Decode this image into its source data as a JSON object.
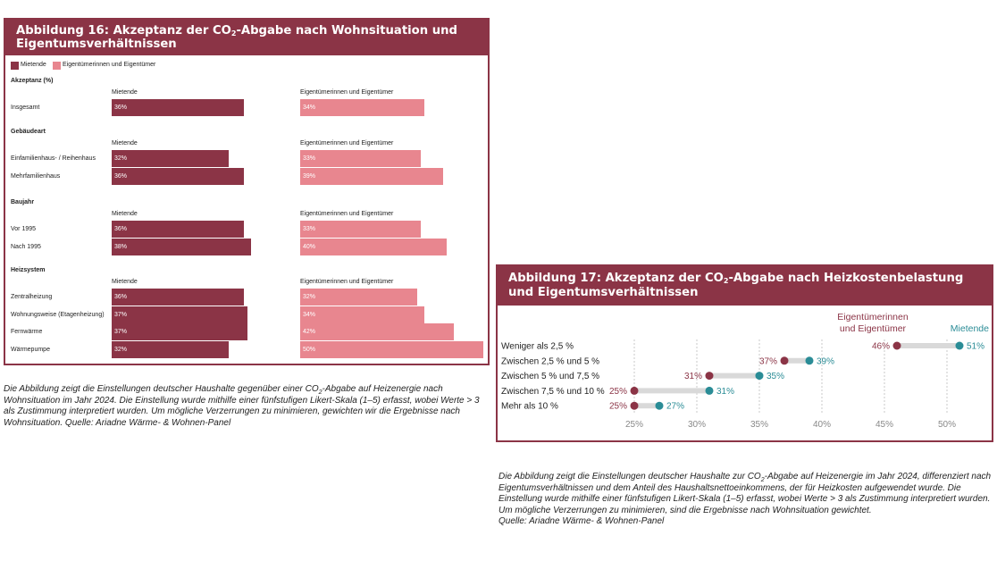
{
  "colors": {
    "rent": "#8b3446",
    "own": "#e8868f",
    "rent_dot": "#8b3446",
    "own_dot": "#2a8c96",
    "frame": "#8b3446"
  },
  "fig16": {
    "title_pre": "Abbildung 16: Akzeptanz der CO",
    "title_sub": "2",
    "title_post": "-Abgabe nach Wohnsituation und Eigentumsverhältnissen",
    "legend": {
      "rent": "Mietende",
      "own": "Eigentümerinnen und Eigentümer"
    },
    "caption_pre": "Die Abbildung zeigt die Einstellungen deutscher Haushalte gegenüber einer CO",
    "caption_sub": "2",
    "caption_post": "-Abgabe auf Heizenergie nach Wohnsituation im Jahr 2024. Die Einstellung wurde mithilfe einer fünfstufigen Likert-Skala (1–5) erfasst, wobei Werte > 3 als Zustimmung interpretiert wurden. Um mögliche Verzerrungen zu minimieren, gewichten wir die Ergebnisse nach Wohnsituation. Quelle: Ariadne Wärme- & Wohnen-Panel"
  },
  "fig17": {
    "title_pre": "Abbildung 17: Akzeptanz der CO",
    "title_sub": "2",
    "title_post": "-Abgabe nach Heizkostenbelastung und Eigentumsverhältnissen",
    "legend_own_line1": "Eigentümerinnen",
    "legend_own_line2": "und Eigentümer",
    "legend_rent": "Mietende",
    "caption_pre": "Die Abbildung zeigt die Einstellungen deutscher Haushalte zur CO",
    "caption_sub": "2",
    "caption_post": "-Abgabe auf Heizenergie im Jahr 2024, differenziert nach Eigentumsverhältnissen und dem Anteil des Haushaltsnettoeinkommens, der für Heizkosten aufgewendet wurde. Die Einstellung wurde mithilfe einer fünfstufigen Likert-Skala (1–5) erfasst, wobei Werte > 3 als Zustimmung interpretiert wurden. Um mögliche Verzerrungen zu minimieren, sind die Ergebnisse nach Wohnsituation gewichtet.",
    "caption_source": "Quelle: Ariadne Wärme- & Wohnen-Panel"
  },
  "chart_data": [
    {
      "type": "bar",
      "title": "Abbildung 16: Akzeptanz der CO2-Abgabe nach Wohnsituation und Eigentumsverhältnissen",
      "unit": "%",
      "series": [
        {
          "name": "Mietende"
        },
        {
          "name": "Eigentümerinnen und Eigentümer"
        }
      ],
      "sections": [
        {
          "title": "Akzeptanz (%)",
          "col_rent": "Mietende",
          "col_own": "Eigentümerinnen und Eigentümer",
          "rows": [
            {
              "label": "Insgesamt",
              "rent": 36,
              "own": 34,
              "rent_label": "36%",
              "own_label": "34%"
            }
          ]
        },
        {
          "title": "Gebäudeart",
          "col_rent": "Mietende",
          "col_own": "Eigentümerinnen und Eigentümer",
          "rows": [
            {
              "label": "Einfamilienhaus- / Reihenhaus",
              "rent": 32,
              "own": 33,
              "rent_label": "32%",
              "own_label": "33%"
            },
            {
              "label": "Mehrfamilienhaus",
              "rent": 36,
              "own": 39,
              "rent_label": "36%",
              "own_label": "39%"
            }
          ]
        },
        {
          "title": "Baujahr",
          "col_rent": "Mietende",
          "col_own": "Eigentümerinnen und Eigentümer",
          "rows": [
            {
              "label": "Vor 1995",
              "rent": 36,
              "own": 33,
              "rent_label": "36%",
              "own_label": "33%"
            },
            {
              "label": "Nach 1995",
              "rent": 38,
              "own": 40,
              "rent_label": "38%",
              "own_label": "40%"
            }
          ]
        },
        {
          "title": "Heizsystem",
          "col_rent": "Mietende",
          "col_own": "Eigentümerinnen und Eigentümer",
          "rows": [
            {
              "label": "Zentralheizung",
              "rent": 36,
              "own": 32,
              "rent_label": "36%",
              "own_label": "32%"
            },
            {
              "label": "Wohnungsweise (Etagenheizung)",
              "rent": 37,
              "own": 34,
              "rent_label": "37%",
              "own_label": "34%"
            },
            {
              "label": "Fernwärme",
              "rent": 37,
              "own": 42,
              "rent_label": "37%",
              "own_label": "42%"
            },
            {
              "label": "Wärmepumpe",
              "rent": 32,
              "own": 50,
              "rent_label": "32%",
              "own_label": "50%"
            }
          ]
        }
      ]
    },
    {
      "type": "scatter",
      "title": "Abbildung 17: Akzeptanz der CO2-Abgabe nach Heizkostenbelastung und Eigentumsverhältnissen",
      "categories": [
        "Weniger als 2,5 %",
        "Zwischen 2,5 % und 5 %",
        "Zwischen 5 % und 7,5 %",
        "Zwischen 7,5 % und 10 %",
        "Mehr als 10 %"
      ],
      "series": [
        {
          "name": "Eigentümerinnen und Eigentümer",
          "values": [
            46,
            37,
            31,
            25,
            25
          ],
          "labels": [
            "46%",
            "37%",
            "31%",
            "25%",
            "25%"
          ]
        },
        {
          "name": "Mietende",
          "values": [
            51,
            39,
            35,
            31,
            27
          ],
          "labels": [
            "51%",
            "39%",
            "35%",
            "31%",
            "27%"
          ]
        }
      ],
      "x_ticks": [
        25,
        30,
        35,
        40,
        45,
        50
      ],
      "x_tick_labels": [
        "25%",
        "30%",
        "35%",
        "40%",
        "45%",
        "50%"
      ],
      "xlim": [
        23,
        52
      ],
      "grid": true
    }
  ]
}
